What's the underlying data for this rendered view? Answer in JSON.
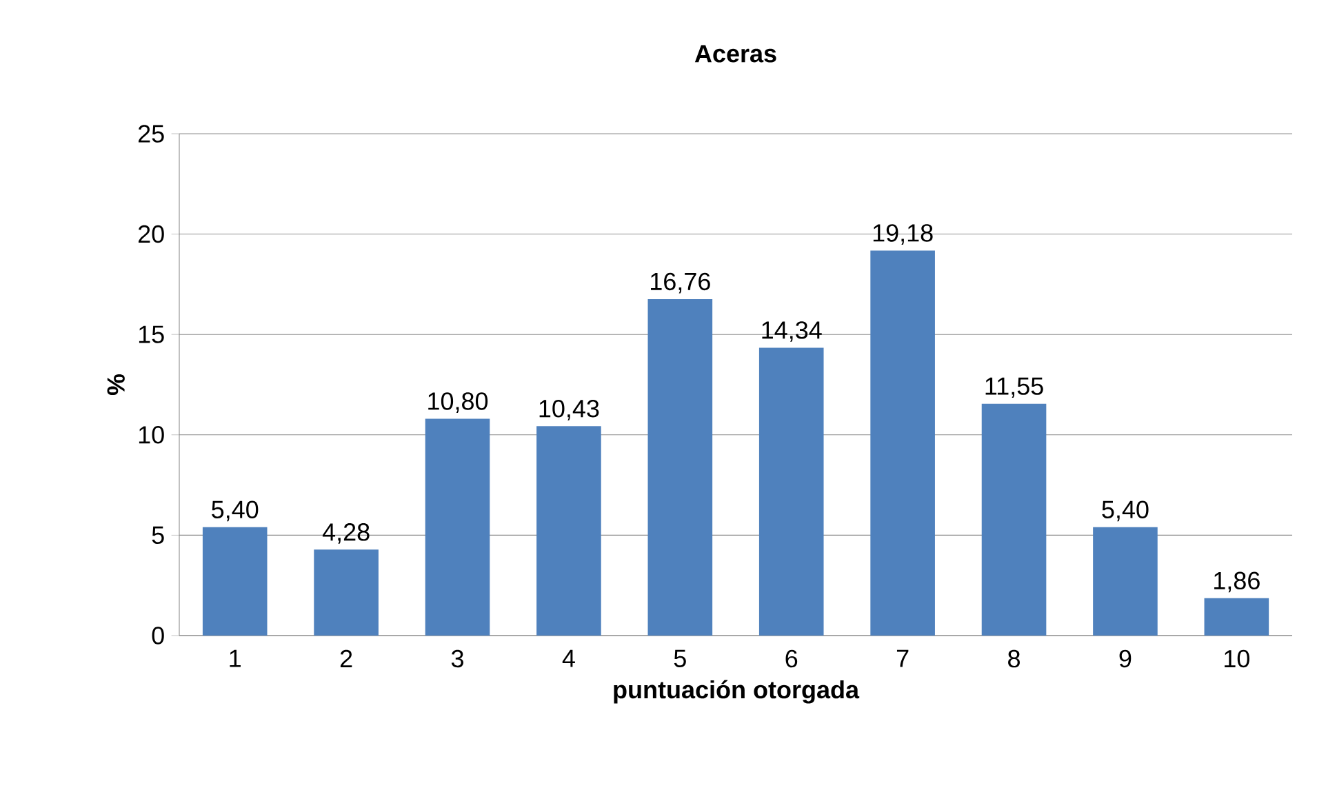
{
  "chart_data": {
    "type": "bar",
    "title": "Aceras",
    "xlabel": "puntuación otorgada",
    "ylabel": "%",
    "categories": [
      "1",
      "2",
      "3",
      "4",
      "5",
      "6",
      "7",
      "8",
      "9",
      "10"
    ],
    "values": [
      5.4,
      4.28,
      10.8,
      10.43,
      16.76,
      14.34,
      19.18,
      11.55,
      5.4,
      1.86
    ],
    "value_labels": [
      "5,40",
      "4,28",
      "10,80",
      "10,43",
      "16,76",
      "14,34",
      "19,18",
      "11,55",
      "5,40",
      "1,86"
    ],
    "color": "#4f81bd",
    "ylim": [
      0,
      25
    ],
    "yticks": [
      0,
      5,
      10,
      15,
      20,
      25
    ],
    "grid": "y"
  }
}
